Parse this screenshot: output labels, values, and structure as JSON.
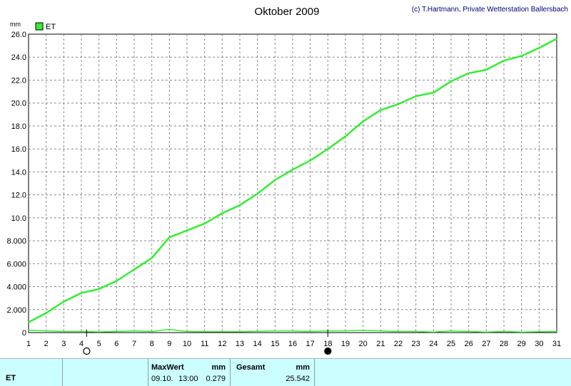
{
  "header": {
    "title": "Oktober 2009",
    "credit": "(c) T.Hartmann, Private Wetterstation Ballersbach"
  },
  "colors": {
    "line": "#33ee33",
    "grid": "#888888",
    "footer_bg": "#ccffff"
  },
  "chart_data": {
    "type": "line",
    "title": "Oktober 2009",
    "ylabel": "mm",
    "xlabel": "",
    "legend": "top-left",
    "grid": true,
    "xlim": [
      1,
      31
    ],
    "ylim": [
      0,
      26
    ],
    "x_ticks": [
      "1",
      "2",
      "3",
      "4",
      "5",
      "6",
      "7",
      "8",
      "9",
      "10",
      "11",
      "12",
      "13",
      "14",
      "15",
      "16",
      "17",
      "18",
      "19",
      "20",
      "21",
      "22",
      "23",
      "24",
      "25",
      "26",
      "27",
      "28",
      "29",
      "30",
      "31"
    ],
    "y_ticks": [
      "0",
      "2.000",
      "4.000",
      "6.000",
      "8.000",
      "10.0",
      "12.0",
      "14.0",
      "16.0",
      "18.0",
      "20.0",
      "22.0",
      "24.0",
      "26.0"
    ],
    "y_tick_values": [
      0,
      2,
      4,
      6,
      8,
      10,
      12,
      14,
      16,
      18,
      20,
      22,
      24,
      26
    ],
    "moon_phases": [
      {
        "day": 4.3,
        "phase": "full"
      },
      {
        "day": 18.0,
        "phase": "new"
      }
    ],
    "series": [
      {
        "name": "ET",
        "x": [
          1,
          2,
          3,
          4,
          5,
          6,
          7,
          8,
          9,
          10,
          11,
          12,
          13,
          14,
          15,
          16,
          17,
          18,
          19,
          20,
          21,
          22,
          23,
          24,
          25,
          26,
          27,
          28,
          29,
          30,
          31
        ],
        "values": [
          0.9,
          1.7,
          2.7,
          3.45,
          3.8,
          4.5,
          5.5,
          6.5,
          8.3,
          8.9,
          9.5,
          10.4,
          11.1,
          12.1,
          13.3,
          14.2,
          15.0,
          16.0,
          17.1,
          18.4,
          19.4,
          19.9,
          20.6,
          20.9,
          21.9,
          22.6,
          22.9,
          23.7,
          24.1,
          24.8,
          25.6
        ]
      },
      {
        "name": "",
        "x": [
          1,
          2,
          3,
          4,
          5,
          6,
          7,
          8,
          9,
          10,
          11,
          12,
          13,
          14,
          15,
          16,
          17,
          18,
          19,
          20,
          21,
          22,
          23,
          24,
          25,
          26,
          27,
          28,
          29,
          30,
          31
        ],
        "values": [
          0.2,
          0.15,
          0.1,
          0.1,
          0.06,
          0.1,
          0.15,
          0.1,
          0.279,
          0.1,
          0.08,
          0.08,
          0.08,
          0.12,
          0.15,
          0.15,
          0.1,
          0.15,
          0.15,
          0.2,
          0.15,
          0.1,
          0.1,
          0.05,
          0.15,
          0.1,
          0.05,
          0.1,
          0.05,
          0.08,
          0.1
        ]
      }
    ]
  },
  "footer": {
    "series_label": "ET",
    "max_heading": "MaxWert",
    "max_unit": "mm",
    "max_date": "09.10.",
    "max_time": "13:00",
    "max_value": "0.279",
    "total_heading": "Gesamt",
    "total_unit": "mm",
    "total_value": "25.542"
  }
}
